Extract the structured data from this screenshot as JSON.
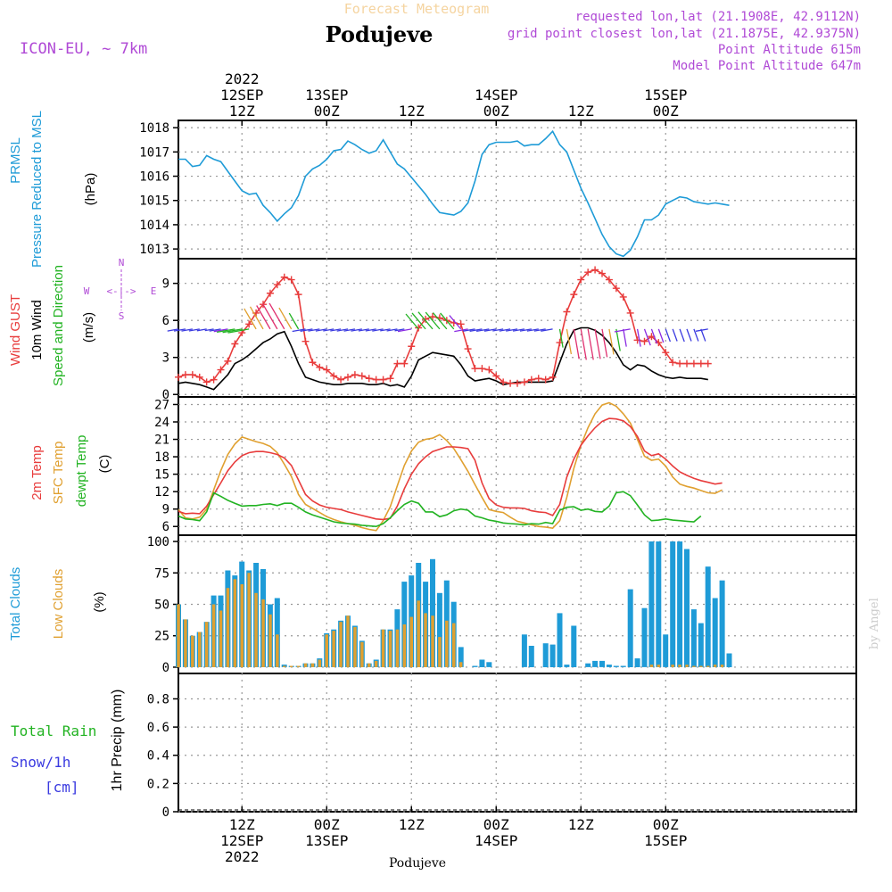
{
  "header": {
    "subtitle": "Forecast Meteogram",
    "location": "Podujeve",
    "model": "ICON-EU, ~ 7km",
    "requested": "requested lon,lat (21.1908E, 42.9112N)",
    "grid_point": "grid point closest lon,lat (21.1875E, 42.9375N)",
    "point_altitude": "Point Altitude 615m",
    "model_altitude": "Model Point Altitude 647m"
  },
  "footer": {
    "location": "Podujeve",
    "credit": "by Angel"
  },
  "time_axis": {
    "unit": "hours since 2022-09-12 00Z",
    "range": [
      3,
      99
    ],
    "top_ticks": [
      {
        "t": 12,
        "lines": [
          "2022",
          "12SEP",
          "12Z"
        ]
      },
      {
        "t": 24,
        "lines": [
          "13SEP",
          "00Z"
        ]
      },
      {
        "t": 36,
        "lines": [
          "12Z"
        ]
      },
      {
        "t": 48,
        "lines": [
          "14SEP",
          "00Z"
        ]
      },
      {
        "t": 60,
        "lines": [
          "12Z"
        ]
      },
      {
        "t": 72,
        "lines": [
          "15SEP",
          "00Z"
        ]
      }
    ],
    "bottom_ticks": [
      {
        "t": 12,
        "lines": [
          "12Z",
          "12SEP",
          "2022"
        ]
      },
      {
        "t": 24,
        "lines": [
          "00Z",
          "13SEP"
        ]
      },
      {
        "t": 36,
        "lines": [
          "12Z"
        ]
      },
      {
        "t": 48,
        "lines": [
          "00Z",
          "14SEP"
        ]
      },
      {
        "t": 60,
        "lines": [
          "12Z"
        ]
      },
      {
        "t": 72,
        "lines": [
          "00Z",
          "15SEP"
        ]
      }
    ]
  },
  "panels": {
    "pressure": {
      "labels": [
        {
          "text": "PRMSL",
          "color": "#1e9bd7"
        },
        {
          "text": "Pressure Reduced to MSL",
          "color": "#1e9bd7"
        },
        {
          "text": "(hPa)",
          "color": "#000000"
        }
      ],
      "ticks": [
        "1013",
        "1014",
        "1015",
        "1016",
        "1017",
        "1018"
      ]
    },
    "wind": {
      "labels": [
        {
          "text": "Wind GUST",
          "color": "#e83c3c"
        },
        {
          "text": "10m Wind",
          "color": "#000000"
        },
        {
          "text": "Speed and Direction",
          "color": "#22b322"
        },
        {
          "text": "(m/s)",
          "color": "#000000"
        }
      ],
      "ticks": [
        "0",
        "3",
        "6",
        "9"
      ],
      "compass": {
        "n": "N",
        "s": "S",
        "w": "W",
        "e": "E",
        "arrow": "<-|->",
        "color": "#b04ad6"
      }
    },
    "temperature": {
      "labels": [
        {
          "text": "2m Temp",
          "color": "#e83c3c"
        },
        {
          "text": "SFC Temp",
          "color": "#e0a030"
        },
        {
          "text": "dewpt Temp",
          "color": "#22b322"
        },
        {
          "text": "(C)",
          "color": "#000000"
        }
      ],
      "ticks": [
        "6",
        "9",
        "12",
        "15",
        "18",
        "21",
        "24",
        "27"
      ]
    },
    "clouds": {
      "labels": [
        {
          "text": "Total Clouds",
          "color": "#1e9bd7"
        },
        {
          "text": "Low Clouds",
          "color": "#e0a030"
        },
        {
          "text": "(%)",
          "color": "#000000"
        }
      ],
      "ticks": [
        "0",
        "25",
        "50",
        "75",
        "100"
      ]
    },
    "precip": {
      "side_labels": [
        {
          "text": "Total  Rain",
          "color": "#22b322"
        },
        {
          "text": "Snow/1h",
          "color": "#3a3ae0"
        },
        {
          "text": "[cm]",
          "color": "#3a3ae0"
        }
      ],
      "axis_label": "1hr Precip (mm)",
      "ticks": [
        "0",
        "0.2",
        "0.4",
        "0.6",
        "0.8"
      ]
    }
  },
  "chart_data": {
    "type": "line",
    "title": "Forecast Meteogram - Podujeve",
    "time_start": "2022-09-12 03Z",
    "time_step_hours": 1,
    "series": [
      {
        "name": "PRMSL (hPa)",
        "color": "#1e9bd7",
        "ylim": [
          1012.6,
          1018.3
        ],
        "values": [
          1016.7,
          1016.7,
          1016.4,
          1016.45,
          1016.85,
          1016.7,
          1016.6,
          1016.2,
          1015.8,
          1015.4,
          1015.25,
          1015.3,
          1014.8,
          1014.5,
          1014.15,
          1014.45,
          1014.7,
          1015.2,
          1016.0,
          1016.3,
          1016.45,
          1016.7,
          1017.05,
          1017.1,
          1017.45,
          1017.3,
          1017.1,
          1016.95,
          1017.05,
          1017.5,
          1017.0,
          1016.5,
          1016.3,
          1015.95,
          1015.6,
          1015.25,
          1014.85,
          1014.5,
          1014.45,
          1014.4,
          1014.55,
          1014.9,
          1015.8,
          1016.9,
          1017.3,
          1017.4,
          1017.4,
          1017.4,
          1017.45,
          1017.25,
          1017.3,
          1017.3,
          1017.55,
          1017.85,
          1017.3,
          1017.0,
          1016.25,
          1015.5,
          1014.9,
          1014.25,
          1013.6,
          1013.1,
          1012.8,
          1012.7,
          1012.95,
          1013.5,
          1014.2,
          1014.2,
          1014.4,
          1014.85,
          1015.0,
          1015.15,
          1015.1,
          1014.95,
          1014.9,
          1014.85,
          1014.9,
          1014.85,
          1014.8
        ]
      },
      {
        "name": "Wind GUST (m/s)",
        "color": "#e83c3c",
        "ylim": [
          -0.2,
          11
        ],
        "values": [
          1.4,
          1.6,
          1.6,
          1.4,
          1.0,
          1.2,
          2.0,
          2.7,
          4.1,
          5.0,
          5.7,
          6.6,
          7.3,
          8.2,
          8.9,
          9.5,
          9.3,
          8.1,
          4.3,
          2.6,
          2.2,
          2.0,
          1.5,
          1.2,
          1.4,
          1.6,
          1.5,
          1.3,
          1.2,
          1.2,
          1.3,
          2.5,
          2.5,
          3.9,
          5.4,
          6.1,
          6.3,
          6.2,
          6.0,
          5.8,
          5.7,
          3.7,
          2.1,
          2.1,
          2.0,
          1.5,
          1.0,
          0.9,
          0.9,
          1.0,
          1.2,
          1.3,
          1.2,
          1.4,
          4.2,
          6.7,
          8.1,
          9.3,
          9.9,
          10.1,
          9.8,
          9.3,
          8.6,
          7.9,
          6.6,
          4.4,
          4.3,
          4.7,
          4.2,
          3.4,
          2.6,
          2.5,
          2.5,
          2.5,
          2.5,
          2.5
        ]
      },
      {
        "name": "10m Wind speed (m/s)",
        "color": "#000000",
        "ylim": [
          -0.2,
          11
        ],
        "values": [
          0.9,
          1.0,
          0.9,
          0.8,
          0.6,
          0.4,
          1.0,
          1.6,
          2.5,
          2.8,
          3.2,
          3.7,
          4.2,
          4.5,
          4.9,
          5.1,
          3.9,
          2.5,
          1.4,
          1.2,
          1.0,
          0.9,
          0.8,
          0.8,
          0.9,
          0.9,
          0.9,
          0.8,
          0.8,
          0.9,
          0.7,
          0.8,
          0.6,
          1.5,
          2.8,
          3.1,
          3.4,
          3.3,
          3.2,
          3.1,
          2.4,
          1.5,
          1.1,
          1.2,
          1.3,
          1.1,
          0.8,
          0.9,
          1.0,
          1.0,
          1.0,
          1.0,
          1.0,
          1.1,
          2.6,
          4.1,
          5.2,
          5.4,
          5.4,
          5.2,
          4.8,
          4.2,
          3.4,
          2.4,
          2.0,
          2.4,
          2.3,
          1.9,
          1.6,
          1.4,
          1.3,
          1.4,
          1.3,
          1.3,
          1.3,
          1.2
        ]
      },
      {
        "name": "2m Temp (C)",
        "color": "#e83c3c",
        "ylim": [
          4.5,
          28.3
        ],
        "values": [
          8.6,
          8.2,
          8.3,
          8.2,
          9.5,
          11.5,
          13.5,
          15.6,
          17.1,
          18.2,
          18.7,
          18.9,
          18.9,
          18.7,
          18.4,
          17.8,
          16.5,
          14.0,
          11.5,
          10.4,
          9.7,
          9.3,
          9.1,
          8.9,
          8.5,
          8.2,
          7.9,
          7.6,
          7.3,
          7.2,
          7.4,
          9.5,
          12.5,
          15.0,
          16.8,
          18.0,
          18.9,
          19.3,
          19.7,
          19.7,
          19.6,
          19.4,
          17.4,
          13.5,
          10.8,
          9.7,
          9.3,
          9.2,
          9.2,
          9.1,
          8.7,
          8.5,
          8.4,
          7.9,
          9.8,
          14.5,
          17.6,
          20.0,
          21.6,
          23.0,
          24.1,
          24.6,
          24.5,
          24.2,
          23.2,
          21.5,
          19.0,
          18.2,
          18.5,
          17.6,
          16.4,
          15.4,
          14.8,
          14.3,
          13.9,
          13.6,
          13.3,
          13.5
        ]
      },
      {
        "name": "SFC Temp (C)",
        "color": "#e0a030",
        "ylim": [
          4.5,
          28.3
        ],
        "values": [
          8.9,
          7.5,
          7.3,
          7.6,
          9.0,
          12.3,
          15.6,
          18.4,
          20.2,
          21.4,
          21.0,
          20.6,
          20.3,
          19.8,
          18.7,
          16.7,
          14.6,
          11.5,
          9.8,
          9.1,
          8.4,
          7.7,
          7.2,
          6.8,
          6.5,
          6.2,
          5.8,
          5.5,
          5.3,
          7.0,
          9.4,
          13.0,
          16.5,
          19.0,
          20.5,
          21.0,
          21.2,
          21.8,
          20.8,
          19.4,
          17.5,
          15.5,
          13.2,
          11.0,
          8.9,
          8.6,
          8.4,
          7.6,
          6.9,
          6.6,
          6.3,
          6.0,
          5.9,
          5.7,
          7.0,
          11.0,
          16.0,
          20.0,
          23.0,
          25.4,
          26.9,
          27.3,
          26.7,
          25.4,
          23.8,
          21.0,
          18.1,
          17.4,
          17.6,
          16.4,
          14.5,
          13.3,
          12.9,
          12.6,
          12.2,
          11.8,
          11.7,
          12.3
        ]
      },
      {
        "name": "dewpt Temp (C)",
        "color": "#22b322",
        "ylim": [
          4.5,
          28.3
        ],
        "values": [
          7.8,
          7.3,
          7.2,
          7.0,
          8.5,
          11.8,
          11.2,
          10.5,
          10.0,
          9.5,
          9.6,
          9.6,
          9.8,
          9.9,
          9.6,
          10.0,
          10.0,
          9.3,
          8.5,
          8.0,
          7.6,
          7.2,
          6.8,
          6.6,
          6.5,
          6.4,
          6.2,
          6.1,
          6.0,
          6.5,
          7.5,
          8.7,
          9.8,
          10.4,
          10.0,
          8.5,
          8.5,
          7.7,
          8.0,
          8.7,
          9.0,
          8.8,
          7.8,
          7.5,
          7.1,
          6.9,
          6.6,
          6.5,
          6.4,
          6.3,
          6.5,
          6.4,
          6.7,
          6.5,
          8.8,
          9.3,
          9.4,
          8.8,
          9.0,
          8.6,
          8.5,
          9.5,
          11.8,
          12.0,
          11.3,
          9.7,
          8.0,
          7.0,
          7.1,
          7.3,
          7.1,
          7.0,
          6.9,
          6.8,
          7.8
        ]
      },
      {
        "name": "Total Clouds (%)",
        "color": "#1e9bd7",
        "ylim": [
          -5,
          105
        ],
        "type": "bar",
        "values": [
          50,
          38,
          25,
          28,
          36,
          57,
          57,
          77,
          73,
          84,
          77,
          83,
          78,
          50,
          55,
          2,
          1,
          1,
          3,
          3,
          7,
          27,
          30,
          37,
          41,
          33,
          21,
          3,
          6,
          30,
          30,
          46,
          68,
          73,
          83,
          68,
          86,
          59,
          69,
          52,
          16,
          0,
          1,
          6,
          4,
          0,
          0,
          0,
          0,
          26,
          17,
          0,
          19,
          18,
          43,
          2,
          33,
          0,
          3,
          5,
          5,
          2,
          1,
          1,
          62,
          7,
          47,
          100,
          100,
          26,
          100,
          100,
          94,
          46,
          35,
          80,
          55,
          69,
          11
        ]
      },
      {
        "name": "Low Clouds (%)",
        "color": "#e0a030",
        "ylim": [
          -5,
          105
        ],
        "type": "bar",
        "values": [
          50,
          38,
          25,
          28,
          36,
          50,
          45,
          63,
          70,
          66,
          75,
          59,
          54,
          42,
          26,
          1,
          1,
          1,
          3,
          3,
          6,
          26,
          29,
          36,
          41,
          32,
          20,
          3,
          5,
          30,
          29,
          30,
          34,
          40,
          53,
          43,
          41,
          24,
          37,
          35,
          4,
          0,
          0,
          0,
          0,
          0,
          0,
          0,
          0,
          0,
          0,
          0,
          0,
          0,
          0,
          0,
          0,
          0,
          0,
          0,
          0,
          0,
          0,
          0,
          0,
          0,
          0,
          2,
          2,
          0,
          2,
          2,
          2,
          1,
          1,
          1,
          2,
          2,
          0
        ]
      },
      {
        "name": "1hr Precip (mm)",
        "color": "#22b322",
        "ylim": [
          0,
          0.98
        ],
        "values": []
      }
    ]
  }
}
